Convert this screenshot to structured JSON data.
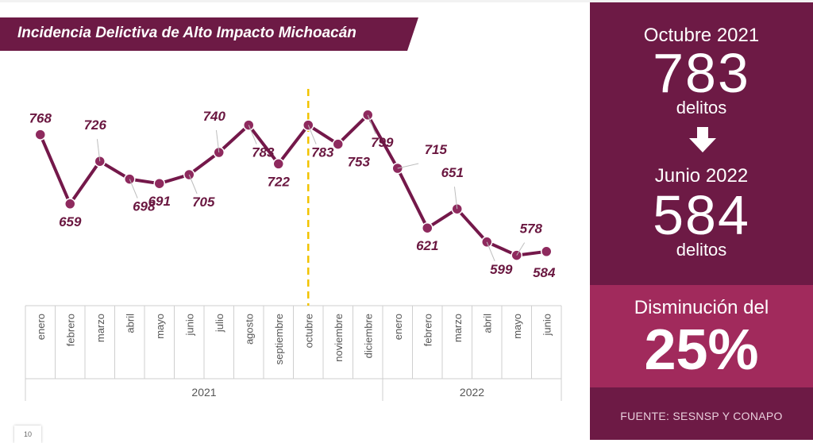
{
  "title": "Incidencia Delictiva de Alto Impacto Michoacán",
  "chart_data": {
    "type": "line",
    "title": "Incidencia Delictiva de Alto Impacto Michoacán",
    "categories": [
      "enero",
      "febrero",
      "marzo",
      "abril",
      "mayo",
      "junio",
      "julio",
      "agosto",
      "septiembre",
      "octubre",
      "noviembre",
      "diciembre",
      "enero",
      "febrero",
      "marzo",
      "abril",
      "mayo",
      "junio"
    ],
    "year_groups": [
      {
        "label": "2021",
        "count": 12
      },
      {
        "label": "2022",
        "count": 6
      }
    ],
    "values": [
      768,
      659,
      726,
      698,
      691,
      705,
      740,
      783,
      722,
      783,
      753,
      799,
      715,
      621,
      651,
      599,
      578,
      584
    ],
    "series_color": "#74184a",
    "marker_color": "#8e2a5e",
    "reference_line": {
      "category_index": 9,
      "color": "#f2c300"
    },
    "ylim": [
      530,
      830
    ]
  },
  "panel": {
    "from_label": "Octubre 2021",
    "from_value": "783",
    "from_unit": "delitos",
    "to_label": "Junio 2022",
    "to_value": "584",
    "to_unit": "delitos",
    "decrease_label": "Disminución del",
    "decrease_value": "25%",
    "source": "FUENTE: SESNSP Y CONAPO"
  },
  "page_number": "10",
  "colors": {
    "dark": "#6d1a45",
    "mid": "#a12a5c",
    "accent": "#f2c300"
  },
  "icons": {
    "arrow": "down-arrow-icon"
  }
}
